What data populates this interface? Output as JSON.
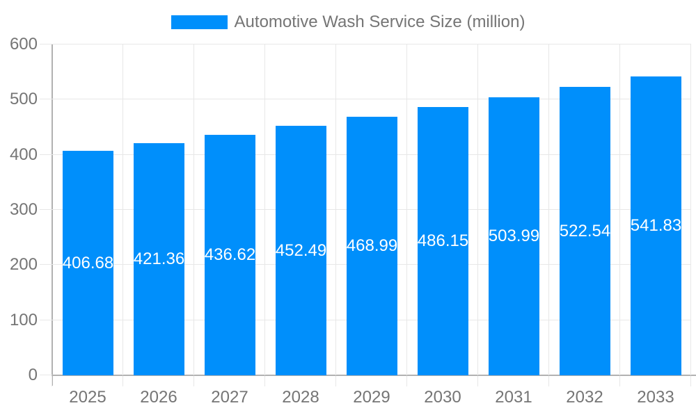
{
  "legend": {
    "label": "Automotive Wash Service Size (million)"
  },
  "colors": {
    "bar": "#008FFB",
    "grid": "#e7e7e7",
    "axis": "#b1b1b1",
    "label": "#757575",
    "data_label": "#ffffff",
    "background": "#ffffff"
  },
  "chart_data": {
    "type": "bar",
    "title": "Automotive Wash Service Size (million)",
    "categories": [
      "2025",
      "2026",
      "2027",
      "2028",
      "2029",
      "2030",
      "2031",
      "2032",
      "2033"
    ],
    "series": [
      {
        "name": "Automotive Wash Service Size (million)",
        "values": [
          406.68,
          421.36,
          436.62,
          452.49,
          468.99,
          486.15,
          503.99,
          522.54,
          541.83
        ]
      }
    ],
    "data_labels": [
      "406.68",
      "421.36",
      "436.62",
      "452.49",
      "468.99",
      "486.15",
      "503.99",
      "522.54",
      "541.83"
    ],
    "xlabel": "",
    "ylabel": "",
    "ylim": [
      0,
      600
    ],
    "yticks": [
      0,
      100,
      200,
      300,
      400,
      500,
      600
    ],
    "grid": true,
    "legend_position": "top",
    "data_label_position": "middle"
  }
}
